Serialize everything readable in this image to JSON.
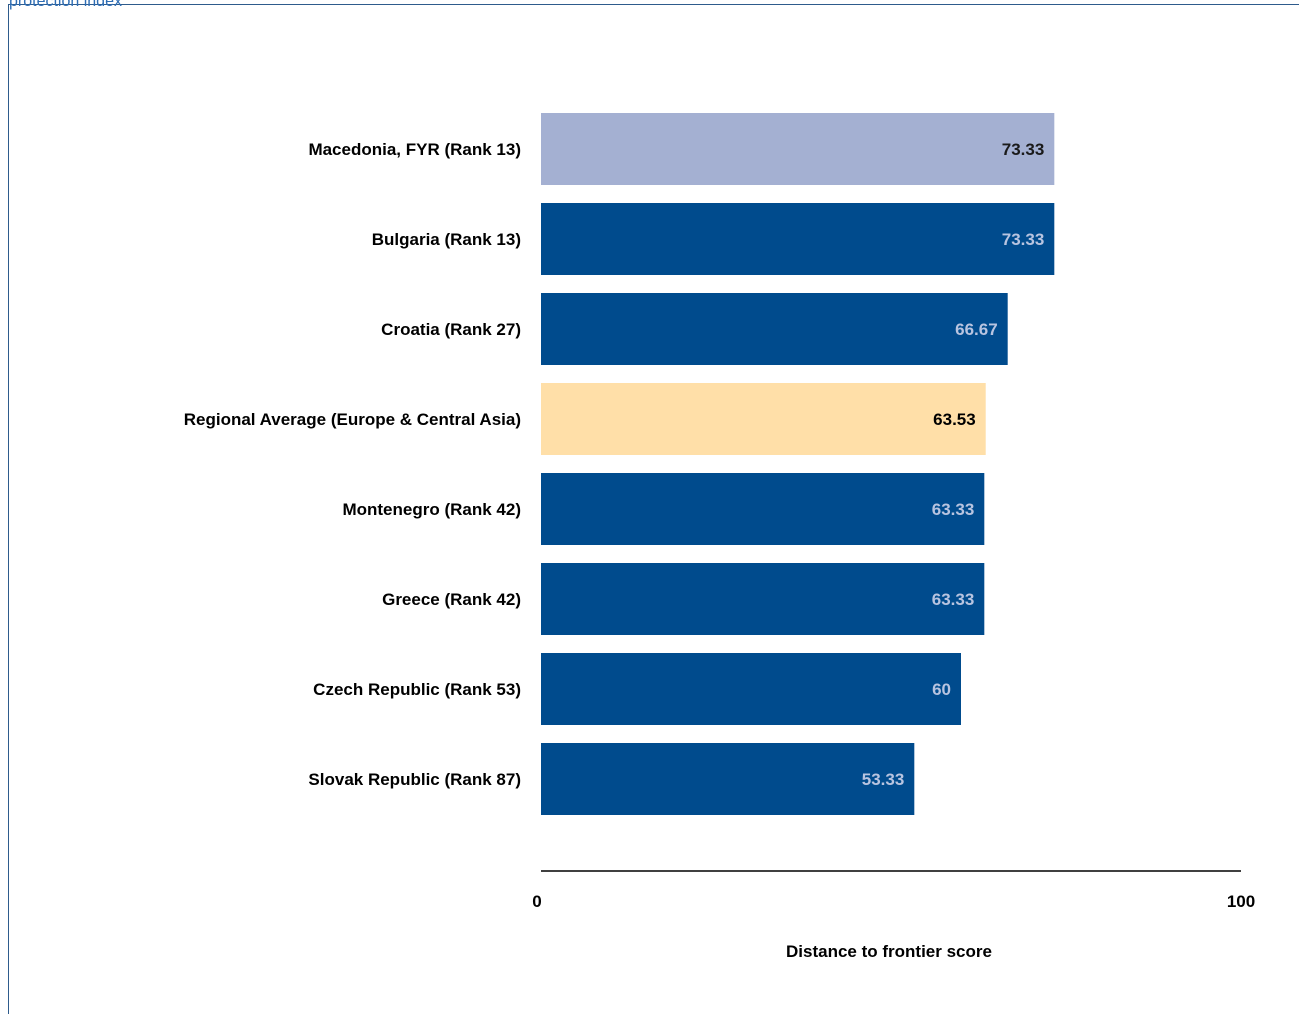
{
  "header": {
    "caption": "protection index"
  },
  "chart_data": {
    "type": "bar",
    "orientation": "horizontal",
    "categories": [
      "Macedonia, FYR (Rank 13)",
      "Bulgaria (Rank 13)",
      "Croatia (Rank 27)",
      "Regional Average (Europe & Central Asia)",
      "Montenegro (Rank 42)",
      "Greece (Rank 42)",
      "Czech Republic (Rank 53)",
      "Slovak Republic (Rank 87)"
    ],
    "values": [
      73.33,
      73.33,
      66.67,
      63.53,
      63.33,
      63.33,
      60,
      53.33
    ],
    "value_labels": [
      "73.33",
      "73.33",
      "66.67",
      "63.53",
      "63.33",
      "63.33",
      "60",
      "53.33"
    ],
    "bar_colors": [
      "#a4b0d2",
      "#004b8d",
      "#004b8d",
      "#ffdfa8",
      "#004b8d",
      "#004b8d",
      "#004b8d",
      "#004b8d"
    ],
    "label_colors": [
      "#1a1a1a",
      "#b8c4e0",
      "#b8c4e0",
      "#000000",
      "#b8c4e0",
      "#b8c4e0",
      "#b8c4e0",
      "#b8c4e0"
    ],
    "xlabel": "Distance to frontier score",
    "ylabel": "",
    "xlim": [
      0,
      100
    ],
    "x_ticks": [
      "0",
      "100"
    ],
    "grid": false,
    "legend": "none"
  }
}
